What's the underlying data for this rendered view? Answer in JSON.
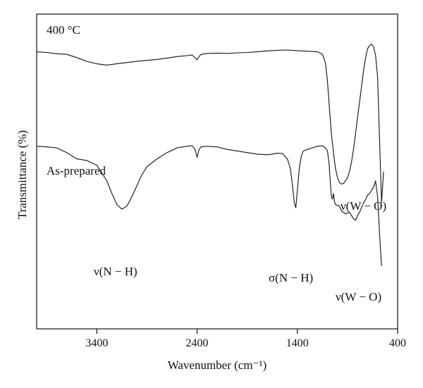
{
  "chart_data": {
    "type": "line",
    "xlabel": "Wavenumber (cm⁻¹)",
    "ylabel": "Transmittance (%)",
    "xlim": [
      4000,
      400
    ],
    "x_reversed": true,
    "x_ticks": [
      3400,
      2400,
      1400,
      400
    ],
    "y_ticks": [],
    "grid": false,
    "series": [
      {
        "name": "400 °C",
        "points": [
          [
            4000,
            0.88
          ],
          [
            3900,
            0.878
          ],
          [
            3800,
            0.874
          ],
          [
            3700,
            0.872
          ],
          [
            3600,
            0.862
          ],
          [
            3500,
            0.85
          ],
          [
            3400,
            0.842
          ],
          [
            3300,
            0.838
          ],
          [
            3200,
            0.842
          ],
          [
            3100,
            0.846
          ],
          [
            3000,
            0.85
          ],
          [
            2900,
            0.853
          ],
          [
            2800,
            0.856
          ],
          [
            2700,
            0.86
          ],
          [
            2600,
            0.865
          ],
          [
            2500,
            0.868
          ],
          [
            2450,
            0.87
          ],
          [
            2400,
            0.855
          ],
          [
            2380,
            0.865
          ],
          [
            2360,
            0.872
          ],
          [
            2300,
            0.875
          ],
          [
            2200,
            0.876
          ],
          [
            2100,
            0.875
          ],
          [
            2000,
            0.877
          ],
          [
            1900,
            0.878
          ],
          [
            1800,
            0.88
          ],
          [
            1700,
            0.883
          ],
          [
            1600,
            0.885
          ],
          [
            1500,
            0.886
          ],
          [
            1400,
            0.884
          ],
          [
            1300,
            0.882
          ],
          [
            1200,
            0.88
          ],
          [
            1150,
            0.873
          ],
          [
            1120,
            0.845
          ],
          [
            1100,
            0.79
          ],
          [
            1080,
            0.7
          ],
          [
            1060,
            0.62
          ],
          [
            1040,
            0.56
          ],
          [
            1020,
            0.51
          ],
          [
            1000,
            0.48
          ],
          [
            980,
            0.465
          ],
          [
            960,
            0.46
          ],
          [
            940,
            0.462
          ],
          [
            920,
            0.47
          ],
          [
            900,
            0.48
          ],
          [
            880,
            0.5
          ],
          [
            860,
            0.53
          ],
          [
            840,
            0.57
          ],
          [
            820,
            0.62
          ],
          [
            800,
            0.67
          ],
          [
            780,
            0.72
          ],
          [
            760,
            0.77
          ],
          [
            740,
            0.82
          ],
          [
            720,
            0.86
          ],
          [
            700,
            0.89
          ],
          [
            680,
            0.9
          ],
          [
            660,
            0.905
          ],
          [
            640,
            0.895
          ],
          [
            620,
            0.87
          ],
          [
            600,
            0.8
          ],
          [
            580,
            0.6
          ],
          [
            560,
            0.4
          ],
          [
            540,
            0.5
          ]
        ]
      },
      {
        "name": "As-prepared",
        "points": [
          [
            4000,
            0.58
          ],
          [
            3900,
            0.578
          ],
          [
            3800,
            0.575
          ],
          [
            3700,
            0.56
          ],
          [
            3600,
            0.54
          ],
          [
            3500,
            0.535
          ],
          [
            3400,
            0.52
          ],
          [
            3300,
            0.47
          ],
          [
            3250,
            0.43
          ],
          [
            3200,
            0.395
          ],
          [
            3150,
            0.38
          ],
          [
            3100,
            0.39
          ],
          [
            3050,
            0.42
          ],
          [
            3000,
            0.455
          ],
          [
            2950,
            0.49
          ],
          [
            2900,
            0.515
          ],
          [
            2800,
            0.54
          ],
          [
            2700,
            0.56
          ],
          [
            2600,
            0.575
          ],
          [
            2500,
            0.58
          ],
          [
            2450,
            0.582
          ],
          [
            2420,
            0.57
          ],
          [
            2400,
            0.545
          ],
          [
            2380,
            0.57
          ],
          [
            2360,
            0.578
          ],
          [
            2300,
            0.58
          ],
          [
            2200,
            0.578
          ],
          [
            2100,
            0.57
          ],
          [
            2000,
            0.565
          ],
          [
            1900,
            0.56
          ],
          [
            1800,
            0.555
          ],
          [
            1700,
            0.553
          ],
          [
            1650,
            0.555
          ],
          [
            1600,
            0.558
          ],
          [
            1550,
            0.557
          ],
          [
            1500,
            0.54
          ],
          [
            1470,
            0.51
          ],
          [
            1450,
            0.46
          ],
          [
            1430,
            0.4
          ],
          [
            1415,
            0.385
          ],
          [
            1400,
            0.44
          ],
          [
            1380,
            0.51
          ],
          [
            1360,
            0.55
          ],
          [
            1340,
            0.565
          ],
          [
            1300,
            0.57
          ],
          [
            1250,
            0.575
          ],
          [
            1200,
            0.58
          ],
          [
            1150,
            0.582
          ],
          [
            1120,
            0.575
          ],
          [
            1100,
            0.565
          ],
          [
            1085,
            0.53
          ],
          [
            1070,
            0.46
          ],
          [
            1060,
            0.42
          ],
          [
            1050,
            0.412
          ],
          [
            1040,
            0.43
          ],
          [
            1030,
            0.405
          ],
          [
            1020,
            0.395
          ],
          [
            1000,
            0.392
          ],
          [
            980,
            0.39
          ],
          [
            960,
            0.375
          ],
          [
            940,
            0.37
          ],
          [
            920,
            0.365
          ],
          [
            900,
            0.368
          ],
          [
            880,
            0.37
          ],
          [
            860,
            0.36
          ],
          [
            840,
            0.35
          ],
          [
            820,
            0.345
          ],
          [
            800,
            0.36
          ],
          [
            780,
            0.37
          ],
          [
            760,
            0.385
          ],
          [
            740,
            0.4
          ],
          [
            720,
            0.41
          ],
          [
            700,
            0.425
          ],
          [
            680,
            0.43
          ],
          [
            660,
            0.44
          ],
          [
            640,
            0.45
          ],
          [
            620,
            0.47
          ],
          [
            600,
            0.42
          ],
          [
            580,
            0.3
          ],
          [
            560,
            0.2
          ]
        ]
      }
    ],
    "annotations": {
      "label_400c": "400 °C",
      "label_asprepared": "As-prepared",
      "nu_wo_top": "ν(W − O)",
      "nu_nh": "ν(N − H)",
      "sigma_nh": "σ(N − H)",
      "nu_wo_bottom": "ν(W − O)"
    }
  }
}
